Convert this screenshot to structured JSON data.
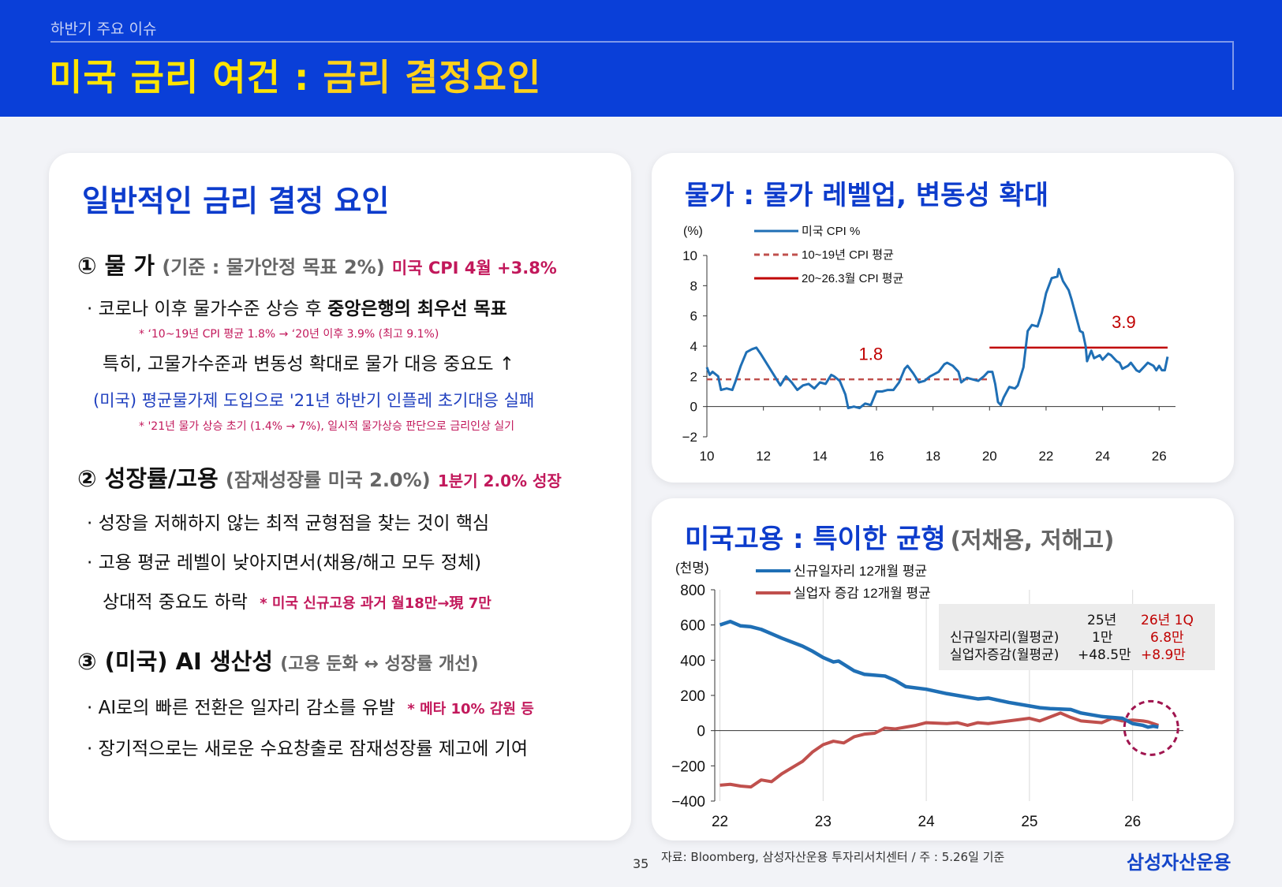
{
  "header": {
    "kicker": "하반기 주요 이슈",
    "title_main": "미국 금리 여건 : ",
    "title_sub": "금리 결정요인"
  },
  "left": {
    "title": "일반적인 금리 결정 요인",
    "s1": {
      "heading": "① 물 가",
      "paren": "(기준 : 물가안정 목표 2%)",
      "highlight": "미국 CPI 4월  +3.8%",
      "b1_pre": "· 코로나 이후 물가수준 상승 후 ",
      "b1_bold": "중앙은행의 최우선 목표",
      "note1": "* ‘10~19년 CPI 평균 1.8% → ‘20년 이후 3.9% (최고 9.1%)",
      "b2": "특히, 고물가수준과 변동성 확대로 물가 대응 중요도 ↑",
      "b3": "(미국) 평균물가제 도입으로 '21년 하반기 인플레 초기대응 실패",
      "note2": "* '21년 물가 상승 초기 (1.4% → 7%), 일시적 물가상승 판단으로 금리인상 실기"
    },
    "s2": {
      "heading": "② 성장률/고용",
      "paren": "(잠재성장률 미국 2.0%)",
      "highlight": "1분기 2.0% 성장",
      "b1": "· 성장을 저해하지 않는 최적 균형점을 찾는 것이 핵심",
      "b2": "· 고용 평균 레벨이 낮아지면서(채용/해고 모두 정체)",
      "b3": "상대적 중요도 하락",
      "note": "* 미국 신규고용 과거 월18만→現 7만"
    },
    "s3": {
      "heading": "③ (미국) AI 생산성",
      "paren": "(고용 둔화 ↔ 성장률 개선)",
      "b1": "· AI로의 빠른 전환은 일자리 감소를 유발",
      "note": "* 메타 10% 감원 등",
      "b2": "· 장기적으로는 새로운 수요창출로 잠재성장률 제고에 기여"
    }
  },
  "cpi_card": {
    "title": "물가 : 물가 레벨업, 변동성 확대"
  },
  "emp_card": {
    "title": "미국고용 : 특이한 균형",
    "title_paren": "(저채용, 저해고)",
    "table": {
      "col1": "25년",
      "col2": "26년 1Q",
      "r1_label": "신규일자리(월평균)",
      "r1_v1": "1만",
      "r1_v2": "6.8만",
      "r2_label": "실업자증감(월평균)",
      "r2_v1": "+48.5만",
      "r2_v2": "+8.9만"
    }
  },
  "footer": {
    "page": "35",
    "source": "자료: Bloomberg, 삼성자산운용 투자리서치센터 / 주 : 5.26일 기준",
    "brand": "삼성자산운용"
  },
  "chart_data": [
    {
      "type": "line",
      "ylabel": "(%)",
      "ylim": [
        -2,
        10
      ],
      "yticks": [
        "10",
        "8",
        "6",
        "4",
        "2",
        "0",
        "-2"
      ],
      "xticks": [
        "10",
        "12",
        "14",
        "16",
        "18",
        "20",
        "22",
        "24",
        "26"
      ],
      "series": [
        {
          "name": "미국 CPI %",
          "color": "#1f6fb5",
          "points": [
            [
              10.0,
              2.6
            ],
            [
              10.1,
              2.1
            ],
            [
              10.2,
              2.3
            ],
            [
              10.4,
              2.0
            ],
            [
              10.5,
              1.1
            ],
            [
              10.7,
              1.2
            ],
            [
              10.9,
              1.1
            ],
            [
              11.0,
              1.6
            ],
            [
              11.2,
              2.7
            ],
            [
              11.4,
              3.6
            ],
            [
              11.6,
              3.8
            ],
            [
              11.75,
              3.9
            ],
            [
              11.9,
              3.5
            ],
            [
              12.1,
              2.9
            ],
            [
              12.3,
              2.3
            ],
            [
              12.5,
              1.7
            ],
            [
              12.6,
              1.4
            ],
            [
              12.8,
              2.0
            ],
            [
              13.0,
              1.6
            ],
            [
              13.2,
              1.1
            ],
            [
              13.4,
              1.4
            ],
            [
              13.6,
              1.5
            ],
            [
              13.8,
              1.2
            ],
            [
              14.0,
              1.6
            ],
            [
              14.2,
              1.5
            ],
            [
              14.4,
              2.1
            ],
            [
              14.5,
              2.0
            ],
            [
              14.7,
              1.7
            ],
            [
              14.9,
              0.8
            ],
            [
              15.0,
              -0.1
            ],
            [
              15.2,
              0.0
            ],
            [
              15.4,
              -0.1
            ],
            [
              15.6,
              0.2
            ],
            [
              15.8,
              0.1
            ],
            [
              16.0,
              1.0
            ],
            [
              16.2,
              1.0
            ],
            [
              16.4,
              1.1
            ],
            [
              16.6,
              1.1
            ],
            [
              16.8,
              1.6
            ],
            [
              17.0,
              2.5
            ],
            [
              17.1,
              2.7
            ],
            [
              17.3,
              2.2
            ],
            [
              17.5,
              1.6
            ],
            [
              17.7,
              1.7
            ],
            [
              17.9,
              2.0
            ],
            [
              18.0,
              2.1
            ],
            [
              18.2,
              2.3
            ],
            [
              18.4,
              2.8
            ],
            [
              18.5,
              2.9
            ],
            [
              18.7,
              2.7
            ],
            [
              18.9,
              2.3
            ],
            [
              19.0,
              1.6
            ],
            [
              19.2,
              1.9
            ],
            [
              19.4,
              1.8
            ],
            [
              19.6,
              1.7
            ],
            [
              19.8,
              2.0
            ],
            [
              19.95,
              2.3
            ],
            [
              20.1,
              2.3
            ],
            [
              20.2,
              1.5
            ],
            [
              20.3,
              0.3
            ],
            [
              20.4,
              0.1
            ],
            [
              20.5,
              0.6
            ],
            [
              20.7,
              1.3
            ],
            [
              20.9,
              1.2
            ],
            [
              21.0,
              1.4
            ],
            [
              21.2,
              2.6
            ],
            [
              21.35,
              5.0
            ],
            [
              21.5,
              5.4
            ],
            [
              21.7,
              5.3
            ],
            [
              21.85,
              6.2
            ],
            [
              22.0,
              7.5
            ],
            [
              22.2,
              8.5
            ],
            [
              22.4,
              8.6
            ],
            [
              22.45,
              9.1
            ],
            [
              22.6,
              8.3
            ],
            [
              22.8,
              7.7
            ],
            [
              22.9,
              7.1
            ],
            [
              23.0,
              6.4
            ],
            [
              23.2,
              5.0
            ],
            [
              23.3,
              4.9
            ],
            [
              23.4,
              4.0
            ],
            [
              23.45,
              3.0
            ],
            [
              23.6,
              3.7
            ],
            [
              23.7,
              3.2
            ],
            [
              23.9,
              3.4
            ],
            [
              24.0,
              3.1
            ],
            [
              24.2,
              3.5
            ],
            [
              24.3,
              3.4
            ],
            [
              24.5,
              3.0
            ],
            [
              24.6,
              2.9
            ],
            [
              24.7,
              2.5
            ],
            [
              24.9,
              2.7
            ],
            [
              25.0,
              2.9
            ],
            [
              25.2,
              2.4
            ],
            [
              25.3,
              2.3
            ],
            [
              25.5,
              2.7
            ],
            [
              25.6,
              2.9
            ],
            [
              25.8,
              2.7
            ],
            [
              25.9,
              2.4
            ],
            [
              26.0,
              2.7
            ],
            [
              26.1,
              2.4
            ],
            [
              26.2,
              2.4
            ],
            [
              26.3,
              3.3
            ]
          ]
        },
        {
          "name": "10~19년 CPI 평균",
          "color": "#c0504d",
          "dashed": true,
          "x": [
            10,
            20
          ],
          "value": 1.8
        },
        {
          "name": "20~26.3월 CPI 평균",
          "color": "#c00000",
          "x": [
            20,
            26.3
          ],
          "value": 3.9
        }
      ],
      "annotations": [
        "1.8",
        "3.9"
      ]
    },
    {
      "type": "line",
      "ylabel": "(천명)",
      "ylim": [
        -400,
        800
      ],
      "yticks": [
        "800",
        "600",
        "400",
        "200",
        "0",
        "-200",
        "-400"
      ],
      "xticks": [
        "22",
        "23",
        "24",
        "25",
        "26"
      ],
      "series": [
        {
          "name": "신규일자리 12개월 평균",
          "color": "#1f6fb5",
          "points": [
            [
              22.0,
              600
            ],
            [
              22.1,
              620
            ],
            [
              22.2,
              595
            ],
            [
              22.3,
              590
            ],
            [
              22.4,
              575
            ],
            [
              22.5,
              550
            ],
            [
              22.6,
              525
            ],
            [
              22.8,
              480
            ],
            [
              22.9,
              450
            ],
            [
              23.0,
              415
            ],
            [
              23.1,
              390
            ],
            [
              23.15,
              395
            ],
            [
              23.3,
              340
            ],
            [
              23.4,
              320
            ],
            [
              23.6,
              310
            ],
            [
              23.7,
              285
            ],
            [
              23.8,
              250
            ],
            [
              24.0,
              235
            ],
            [
              24.2,
              210
            ],
            [
              24.3,
              200
            ],
            [
              24.4,
              190
            ],
            [
              24.5,
              180
            ],
            [
              24.6,
              185
            ],
            [
              24.8,
              160
            ],
            [
              25.0,
              140
            ],
            [
              25.1,
              130
            ],
            [
              25.2,
              125
            ],
            [
              25.4,
              120
            ],
            [
              25.5,
              100
            ],
            [
              25.7,
              80
            ],
            [
              25.9,
              70
            ],
            [
              26.0,
              40
            ],
            [
              26.1,
              30
            ],
            [
              26.15,
              20
            ],
            [
              26.2,
              25
            ],
            [
              26.25,
              20
            ]
          ]
        },
        {
          "name": "실업자 증감 12개월 평균",
          "color": "#c0504d",
          "points": [
            [
              22.0,
              -310
            ],
            [
              22.1,
              -305
            ],
            [
              22.2,
              -315
            ],
            [
              22.3,
              -320
            ],
            [
              22.4,
              -280
            ],
            [
              22.5,
              -290
            ],
            [
              22.6,
              -245
            ],
            [
              22.8,
              -175
            ],
            [
              22.9,
              -120
            ],
            [
              23.0,
              -80
            ],
            [
              23.1,
              -60
            ],
            [
              23.2,
              -70
            ],
            [
              23.3,
              -35
            ],
            [
              23.4,
              -20
            ],
            [
              23.5,
              -15
            ],
            [
              23.6,
              15
            ],
            [
              23.7,
              10
            ],
            [
              23.9,
              30
            ],
            [
              24.0,
              45
            ],
            [
              24.2,
              40
            ],
            [
              24.3,
              45
            ],
            [
              24.4,
              30
            ],
            [
              24.5,
              45
            ],
            [
              24.6,
              40
            ],
            [
              24.8,
              55
            ],
            [
              25.0,
              70
            ],
            [
              25.1,
              55
            ],
            [
              25.3,
              100
            ],
            [
              25.4,
              75
            ],
            [
              25.5,
              55
            ],
            [
              25.7,
              45
            ],
            [
              25.8,
              70
            ],
            [
              25.9,
              55
            ],
            [
              26.0,
              60
            ],
            [
              26.1,
              55
            ],
            [
              26.15,
              50
            ],
            [
              26.2,
              40
            ],
            [
              26.25,
              30
            ]
          ]
        }
      ]
    }
  ]
}
